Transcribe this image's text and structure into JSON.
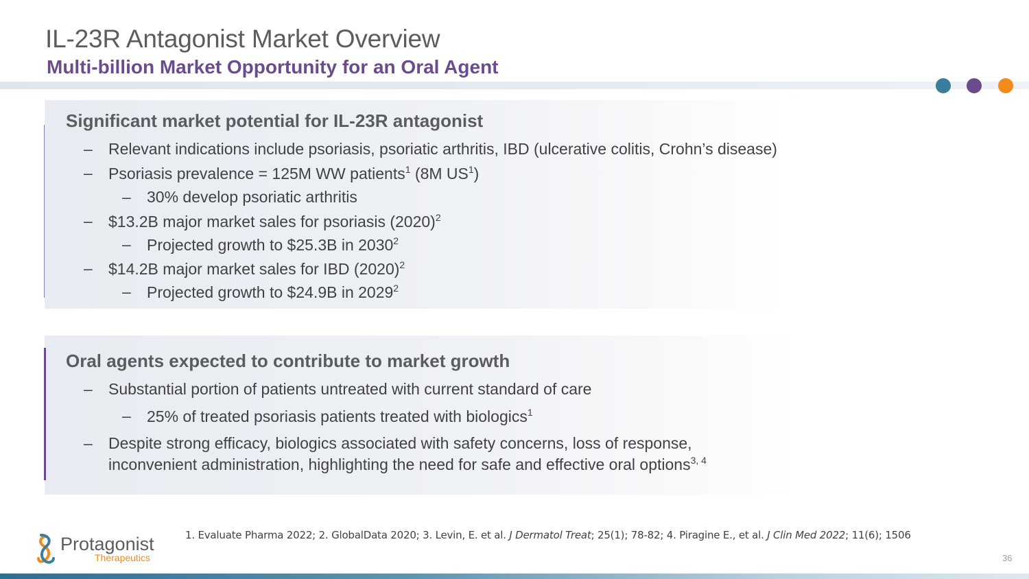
{
  "header": {
    "title": "IL-23R Antagonist Market Overview",
    "subtitle": "Multi-billion Market Opportunity for an Oral Agent"
  },
  "colors": {
    "dot_teal": "#3a7d9d",
    "dot_purple": "#6a4c8c",
    "dot_orange": "#f28a1c",
    "title_gray": "#5a5c60",
    "subtitle_purple": "#6a4c8c"
  },
  "section1": {
    "heading": "Significant market potential for IL-23R antagonist",
    "dash": "–",
    "b1": "Relevant indications include psoriasis, psoriatic arthritis, IBD (ulcerative colitis, Crohn’s disease)",
    "b2a": "Psoriasis prevalence = 125M WW patients",
    "b2s1": "1",
    "b2b": " (8M US",
    "b2s2": "1",
    "b2c": ")",
    "b3": "30% develop psoriatic arthritis",
    "b4": "$13.2B major market sales for psoriasis (2020)",
    "b4s": "2",
    "b5": "Projected growth to $25.3B in 2030",
    "b5s": "2",
    "b6": "$14.2B major market sales for IBD (2020)",
    "b6s": "2",
    "b7": "Projected growth to $24.9B in 2029",
    "b7s": "2"
  },
  "section2": {
    "heading": "Oral agents expected to contribute to market growth",
    "b1": "Substantial portion of patients untreated with current standard of care",
    "b2": "25% of treated psoriasis patients treated with biologics",
    "b2s": "1",
    "b3l1": "Despite strong efficacy, biologics associated with safety concerns, loss of response,",
    "b3l2": "inconvenient administration, highlighting the need for safe and effective oral options",
    "b3s": "3, 4"
  },
  "references": {
    "r1": "1.  Evaluate Pharma 2022; 2. GlobalData 2020; 3. Levin, E. et al. ",
    "j1": "J Dermatol Treat",
    "r2": "; 25(1); 78-82; 4. Piragine E., et al. ",
    "j2": "J Clin Med 2022",
    "r3": "; 11(6); 1506"
  },
  "logo": {
    "name": "Protagonist",
    "sub": "Therapeutics",
    "icon": "protagonist-logo-icon"
  },
  "page_number": "36"
}
